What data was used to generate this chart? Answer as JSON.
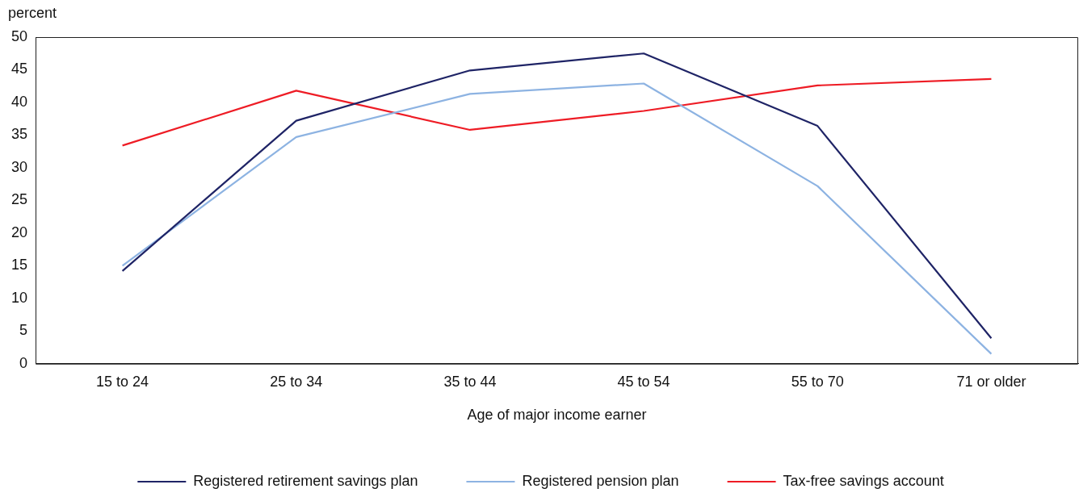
{
  "chart_data": {
    "type": "line",
    "xlabel": "Age of major income earner",
    "ylabel": "percent",
    "categories": [
      "15 to 24",
      "25 to 34",
      "35 to 44",
      "45 to 54",
      "55 to 70",
      "71 or older"
    ],
    "series": [
      {
        "name": "Registered retirement savings plan",
        "color": "#1f2466",
        "values": [
          14.2,
          37.2,
          44.9,
          47.5,
          36.4,
          3.9
        ]
      },
      {
        "name": "Registered pension plan",
        "color": "#8db3e2",
        "values": [
          15.0,
          34.7,
          41.3,
          42.9,
          27.2,
          1.5
        ]
      },
      {
        "name": "Tax-free savings account",
        "color": "#ee1c25",
        "values": [
          33.4,
          41.8,
          35.8,
          38.7,
          42.6,
          43.6
        ]
      }
    ],
    "ylim": [
      0,
      50
    ],
    "yticks": [
      0,
      5,
      10,
      15,
      20,
      25,
      30,
      35,
      40,
      45,
      50
    ],
    "grid": false,
    "legend": "bottom",
    "marker": "none",
    "line_style": "solid"
  }
}
